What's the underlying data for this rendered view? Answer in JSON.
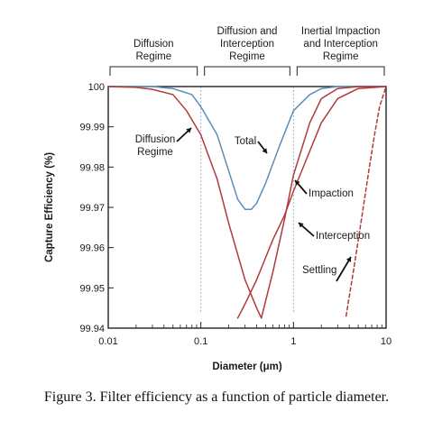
{
  "caption": "Figure 3.  Filter efficiency as a function of particle diameter.",
  "chart_data": {
    "type": "line",
    "xlabel": "Diameter (μm)",
    "ylabel": "Capture Efficiency (%)",
    "xscale": "log",
    "xlim": [
      0.01,
      10
    ],
    "ylim": [
      99.94,
      100
    ],
    "xticks": [
      "0.01",
      "0.1",
      "1",
      "10"
    ],
    "yticks": [
      "99.94",
      "99.95",
      "99.96",
      "99.97",
      "99.98",
      "99.99",
      "100"
    ],
    "regimes": [
      {
        "label": "Diffusion\nRegime",
        "range": [
          0.01,
          0.1
        ]
      },
      {
        "label": "Diffusion and\nInterception\nRegime",
        "range": [
          0.1,
          1
        ]
      },
      {
        "label": "Inertial Impaction\nand Interception\nRegime",
        "range": [
          1,
          10
        ]
      }
    ],
    "regime_boundaries": [
      0.1,
      1
    ],
    "series": [
      {
        "name": "Total",
        "color": "#5b8db8",
        "style": "solid",
        "points": [
          [
            0.01,
            100
          ],
          [
            0.03,
            100
          ],
          [
            0.05,
            99.9995
          ],
          [
            0.08,
            99.998
          ],
          [
            0.1,
            99.995
          ],
          [
            0.15,
            99.988
          ],
          [
            0.2,
            99.979
          ],
          [
            0.25,
            99.972
          ],
          [
            0.3,
            99.9695
          ],
          [
            0.35,
            99.9695
          ],
          [
            0.4,
            99.971
          ],
          [
            0.5,
            99.976
          ],
          [
            0.7,
            99.985
          ],
          [
            1,
            99.994
          ],
          [
            1.5,
            99.998
          ],
          [
            2,
            99.9995
          ],
          [
            3,
            100
          ],
          [
            10,
            100
          ]
        ]
      },
      {
        "name": "Diffusion\nRegime",
        "color": "#b03a3a",
        "style": "solid",
        "points": [
          [
            0.01,
            100
          ],
          [
            0.02,
            99.9998
          ],
          [
            0.03,
            99.9993
          ],
          [
            0.05,
            99.998
          ],
          [
            0.07,
            99.994
          ],
          [
            0.1,
            99.988
          ],
          [
            0.15,
            99.977
          ],
          [
            0.2,
            99.966
          ],
          [
            0.3,
            99.952
          ],
          [
            0.4,
            99.945
          ],
          [
            0.45,
            99.9425
          ]
        ]
      },
      {
        "name": "Interception",
        "color": "#b03a3a",
        "style": "solid",
        "points": [
          [
            0.25,
            99.9425
          ],
          [
            0.3,
            99.946
          ],
          [
            0.4,
            99.952
          ],
          [
            0.6,
            99.962
          ],
          [
            0.8,
            99.968
          ],
          [
            1,
            99.974
          ],
          [
            1.5,
            99.984
          ],
          [
            2,
            99.991
          ],
          [
            3,
            99.997
          ],
          [
            5,
            99.9995
          ],
          [
            10,
            100
          ]
        ]
      },
      {
        "name": "Impaction",
        "color": "#b03a3a",
        "style": "solid",
        "points": [
          [
            0.45,
            99.9425
          ],
          [
            0.6,
            99.954
          ],
          [
            0.8,
            99.967
          ],
          [
            1,
            99.978
          ],
          [
            1.5,
            99.991
          ],
          [
            2,
            99.997
          ],
          [
            3,
            99.9995
          ],
          [
            5,
            100
          ],
          [
            10,
            100
          ]
        ]
      },
      {
        "name": "Settling",
        "color": "#b03a3a",
        "style": "dashed",
        "points": [
          [
            3.7,
            99.943
          ],
          [
            4.5,
            99.955
          ],
          [
            5.5,
            99.968
          ],
          [
            6.5,
            99.979
          ],
          [
            7.5,
            99.988
          ],
          [
            8.5,
            99.995
          ],
          [
            10,
            100
          ]
        ]
      }
    ],
    "annotations": [
      {
        "text": "Diffusion\nRegime",
        "series": "Diffusion\nRegime"
      },
      {
        "text": "Total",
        "series": "Total"
      },
      {
        "text": "Impaction",
        "series": "Impaction"
      },
      {
        "text": "Interception",
        "series": "Interception"
      },
      {
        "text": "Settling",
        "series": "Settling"
      }
    ]
  }
}
